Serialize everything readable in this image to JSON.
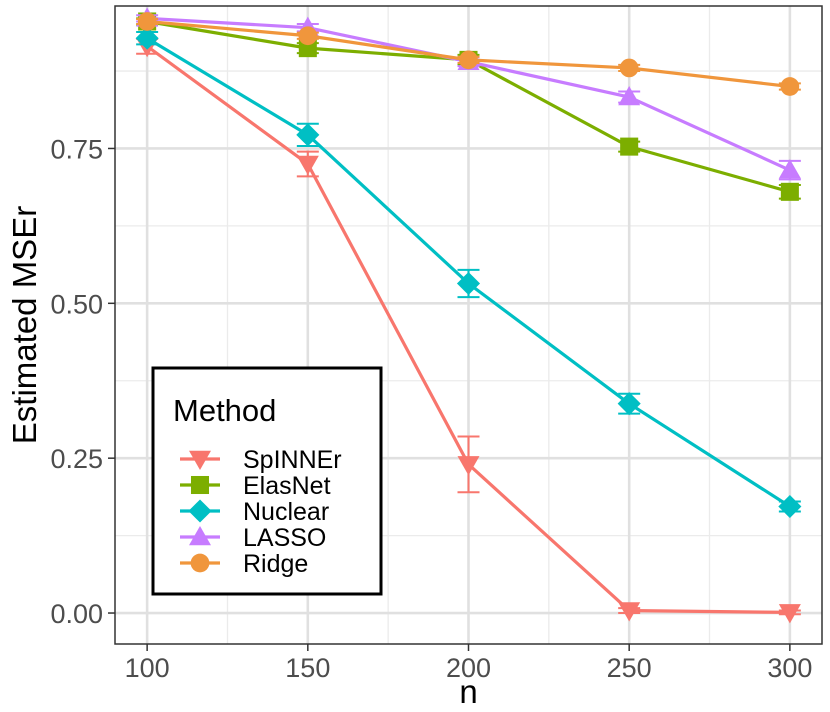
{
  "chart_data": {
    "type": "line",
    "title": "",
    "xlabel": "n",
    "ylabel": "Estimated MSEr",
    "x": [
      100,
      150,
      200,
      250,
      300
    ],
    "xlim": [
      90,
      310
    ],
    "ylim": [
      -0.05,
      0.98
    ],
    "x_ticks": [
      100,
      150,
      200,
      250,
      300
    ],
    "x_tick_labels": [
      "100",
      "150",
      "200",
      "250",
      "300"
    ],
    "y_ticks": [
      0.0,
      0.25,
      0.5,
      0.75
    ],
    "y_tick_labels": [
      "0.00",
      "0.25",
      "0.50",
      "0.75"
    ],
    "grid": true,
    "legend": {
      "title": "Method",
      "position": "bottom-left"
    },
    "series": [
      {
        "name": "SpINNEr",
        "color": "#F8766D",
        "marker": "triangle-down",
        "values": [
          0.915,
          0.725,
          0.24,
          0.004,
          0.001
        ],
        "errors": [
          0.012,
          0.02,
          0.045,
          0.004,
          0.003
        ]
      },
      {
        "name": "ElasNet",
        "color": "#7CAE00",
        "marker": "square",
        "values": [
          0.955,
          0.912,
          0.893,
          0.753,
          0.68
        ],
        "errors": [
          0.005,
          0.008,
          0.008,
          0.008,
          0.011
        ]
      },
      {
        "name": "Nuclear",
        "color": "#00BFC4",
        "marker": "diamond",
        "values": [
          0.928,
          0.772,
          0.532,
          0.338,
          0.172
        ],
        "errors": [
          0.01,
          0.018,
          0.022,
          0.016,
          0.008
        ]
      },
      {
        "name": "LASSO",
        "color": "#C77CFF",
        "marker": "triangle-up",
        "values": [
          0.96,
          0.945,
          0.89,
          0.833,
          0.715
        ],
        "errors": [
          0.005,
          0.006,
          0.007,
          0.009,
          0.015
        ]
      },
      {
        "name": "Ridge",
        "color": "#F0963C",
        "marker": "circle",
        "values": [
          0.955,
          0.932,
          0.893,
          0.88,
          0.85
        ],
        "errors": [
          0.004,
          0.005,
          0.005,
          0.005,
          0.005
        ]
      }
    ]
  }
}
